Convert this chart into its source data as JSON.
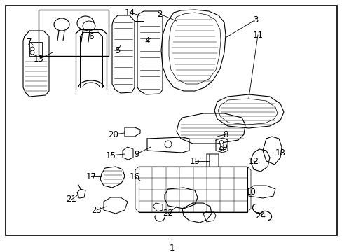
{
  "background_color": "#ffffff",
  "border_color": "#000000",
  "text_color": "#000000",
  "fig_width": 4.89,
  "fig_height": 3.6,
  "dpi": 100,
  "font_size": 8.5,
  "bottom_label": "1"
}
